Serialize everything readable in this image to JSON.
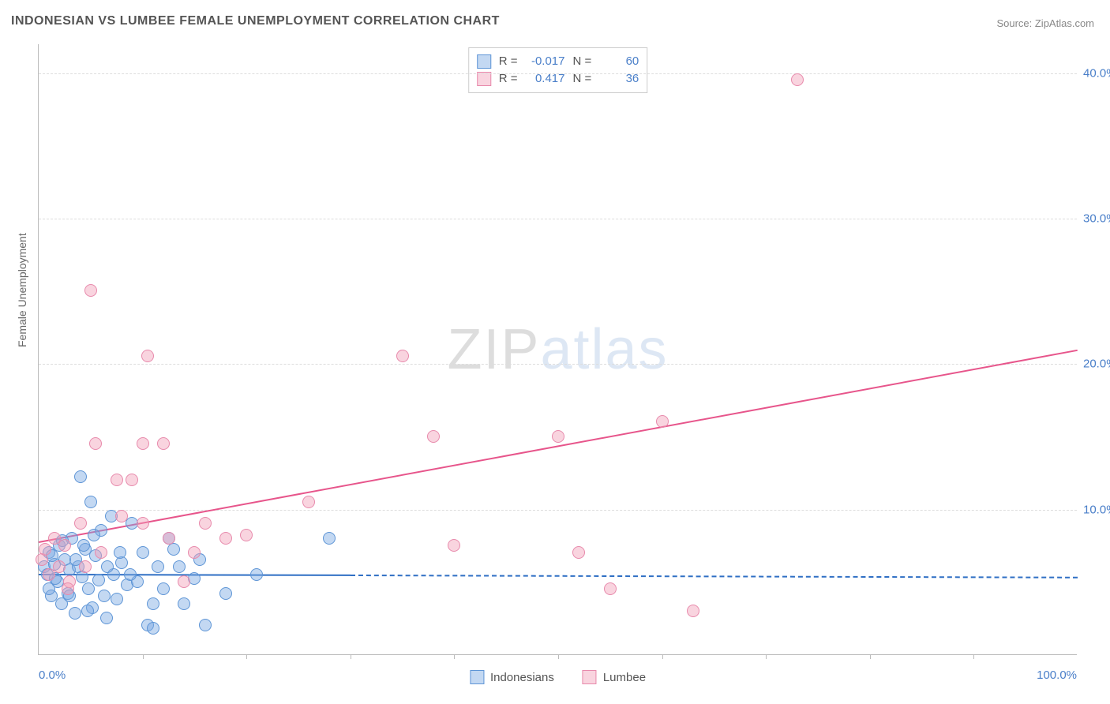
{
  "title": "INDONESIAN VS LUMBEE FEMALE UNEMPLOYMENT CORRELATION CHART",
  "source": "Source: ZipAtlas.com",
  "ylabel": "Female Unemployment",
  "watermark": {
    "a": "ZIP",
    "b": "atlas"
  },
  "chart": {
    "type": "scatter",
    "background_color": "#ffffff",
    "grid_color": "#dddddd",
    "axis_color": "#bbbbbb",
    "xlim": [
      0,
      100
    ],
    "ylim": [
      0,
      42
    ],
    "ytick_values": [
      10,
      20,
      30,
      40
    ],
    "ytick_labels": [
      "10.0%",
      "20.0%",
      "30.0%",
      "40.0%"
    ],
    "xtick_values": [
      10,
      20,
      30,
      40,
      50,
      60,
      70,
      80,
      90
    ],
    "x_left_label": "0.0%",
    "x_right_label": "100.0%",
    "label_color": "#4a7fc9",
    "label_fontsize": 15
  },
  "series": [
    {
      "name": "Indonesians",
      "fill": "rgba(122,168,226,0.45)",
      "stroke": "#5e95d6",
      "trend_color": "#2f6fc4",
      "trend_dash_color": "#2f6fc4",
      "marker_radius": 8,
      "R": "-0.017",
      "N": "60",
      "trend": {
        "x1": 0,
        "y1": 5.6,
        "x2": 30,
        "y2": 5.55,
        "dash_x2": 100,
        "dash_y2": 5.4
      },
      "points": [
        [
          0.5,
          6.0
        ],
        [
          0.8,
          5.5
        ],
        [
          1.0,
          7.0
        ],
        [
          1.2,
          4.0
        ],
        [
          1.5,
          6.2
        ],
        [
          1.8,
          5.0
        ],
        [
          2.0,
          7.5
        ],
        [
          2.2,
          3.5
        ],
        [
          2.5,
          6.5
        ],
        [
          2.8,
          4.2
        ],
        [
          3.0,
          5.8
        ],
        [
          3.2,
          8.0
        ],
        [
          3.5,
          2.8
        ],
        [
          3.8,
          6.0
        ],
        [
          4.0,
          12.2
        ],
        [
          4.2,
          5.3
        ],
        [
          4.5,
          7.2
        ],
        [
          4.8,
          4.5
        ],
        [
          5.0,
          10.5
        ],
        [
          5.2,
          3.2
        ],
        [
          5.5,
          6.8
        ],
        [
          5.8,
          5.1
        ],
        [
          6.0,
          8.5
        ],
        [
          6.3,
          4.0
        ],
        [
          6.5,
          2.5
        ],
        [
          7.0,
          9.5
        ],
        [
          7.2,
          5.5
        ],
        [
          7.5,
          3.8
        ],
        [
          8.0,
          6.3
        ],
        [
          8.5,
          4.8
        ],
        [
          9.0,
          9.0
        ],
        [
          9.5,
          5.0
        ],
        [
          10.0,
          7.0
        ],
        [
          10.5,
          2.0
        ],
        [
          11.0,
          3.5
        ],
        [
          11.5,
          6.0
        ],
        [
          12.0,
          4.5
        ],
        [
          13.0,
          7.2
        ],
        [
          13.5,
          6.0
        ],
        [
          15.0,
          5.2
        ],
        [
          16.0,
          2.0
        ],
        [
          21.0,
          5.5
        ],
        [
          28.0,
          8.0
        ],
        [
          1.0,
          4.5
        ],
        [
          1.3,
          6.8
        ],
        [
          1.6,
          5.2
        ],
        [
          2.3,
          7.8
        ],
        [
          3.0,
          4.0
        ],
        [
          3.6,
          6.5
        ],
        [
          4.3,
          7.5
        ],
        [
          4.7,
          3.0
        ],
        [
          5.3,
          8.2
        ],
        [
          6.6,
          6.0
        ],
        [
          7.8,
          7.0
        ],
        [
          8.8,
          5.5
        ],
        [
          11.0,
          1.8
        ],
        [
          12.5,
          8.0
        ],
        [
          14.0,
          3.5
        ],
        [
          15.5,
          6.5
        ],
        [
          18.0,
          4.2
        ]
      ]
    },
    {
      "name": "Lumbee",
      "fill": "rgba(242,160,185,0.45)",
      "stroke": "#e88aac",
      "trend_color": "#e7558b",
      "marker_radius": 8,
      "R": "0.417",
      "N": "36",
      "trend": {
        "x1": 0,
        "y1": 7.8,
        "x2": 100,
        "y2": 21.0
      },
      "points": [
        [
          0.3,
          6.5
        ],
        [
          0.6,
          7.2
        ],
        [
          1.0,
          5.5
        ],
        [
          1.5,
          8.0
        ],
        [
          2.0,
          6.0
        ],
        [
          2.5,
          7.5
        ],
        [
          3.0,
          5.0
        ],
        [
          4.0,
          9.0
        ],
        [
          5.5,
          14.5
        ],
        [
          5.0,
          25.0
        ],
        [
          6.0,
          7.0
        ],
        [
          7.5,
          12.0
        ],
        [
          8.0,
          9.5
        ],
        [
          9.0,
          12.0
        ],
        [
          10.0,
          14.5
        ],
        [
          10.5,
          20.5
        ],
        [
          10.0,
          9.0
        ],
        [
          12.0,
          14.5
        ],
        [
          12.5,
          8.0
        ],
        [
          14.0,
          5.0
        ],
        [
          15.0,
          7.0
        ],
        [
          16.0,
          9.0
        ],
        [
          18.0,
          8.0
        ],
        [
          20.0,
          8.2
        ],
        [
          26.0,
          10.5
        ],
        [
          35.0,
          20.5
        ],
        [
          38.0,
          15.0
        ],
        [
          40.0,
          7.5
        ],
        [
          50.0,
          15.0
        ],
        [
          52.0,
          7.0
        ],
        [
          55.0,
          4.5
        ],
        [
          60.0,
          16.0
        ],
        [
          63.0,
          3.0
        ],
        [
          73.0,
          39.5
        ],
        [
          2.8,
          4.5
        ],
        [
          4.5,
          6.0
        ]
      ]
    }
  ],
  "legend_top": [
    {
      "R_label": "R =",
      "N_label": "N ="
    }
  ],
  "legend_bottom": [
    "Indonesians",
    "Lumbee"
  ]
}
